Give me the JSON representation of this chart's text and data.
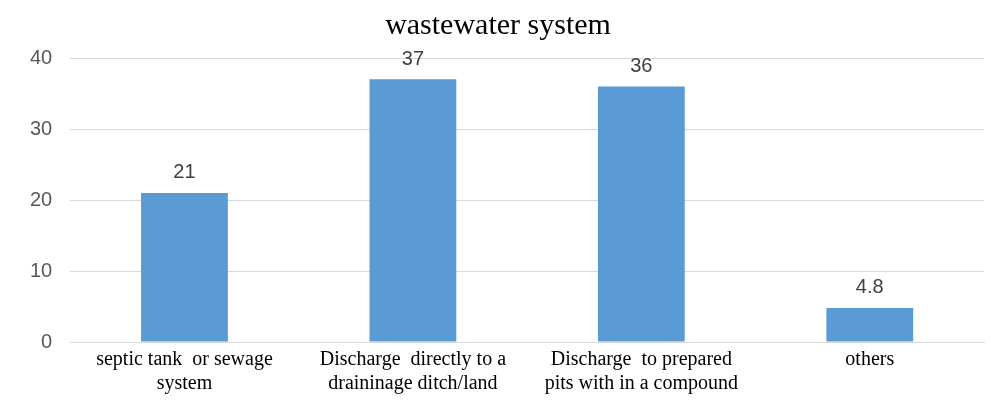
{
  "chart_data": {
    "type": "bar",
    "title": "wastewater system",
    "categories": [
      "septic tank  or sewage system",
      "Discharge  directly to a draininage ditch/land",
      "Discharge  to prepared pits with in a compound",
      "others"
    ],
    "values": [
      21,
      37,
      36,
      4.8
    ],
    "color": "#5b9bd5",
    "ylim": [
      0,
      40
    ],
    "yticks": [
      0,
      10,
      20,
      30,
      40
    ],
    "grid": "y",
    "data_labels": true,
    "legend": false
  }
}
